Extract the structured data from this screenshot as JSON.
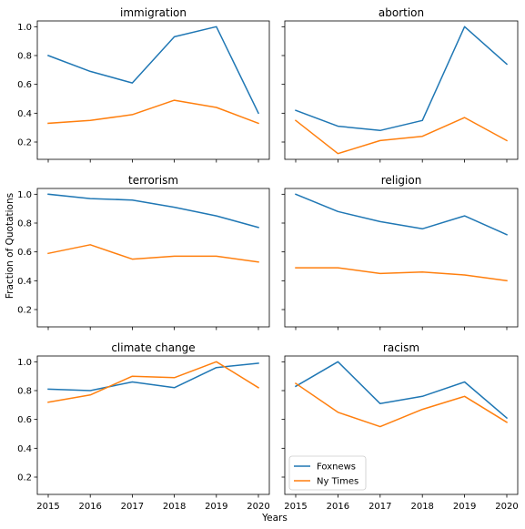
{
  "figure": {
    "xlabel": "Years",
    "ylabel": "Fraction of Quotations",
    "legend": {
      "placement": "lower-left",
      "subplot": 5,
      "entries": [
        "Foxnews",
        "Ny Times"
      ]
    }
  },
  "chart_data": [
    {
      "type": "line",
      "title": "immigration",
      "x": [
        2015,
        2016,
        2017,
        2018,
        2019,
        2020
      ],
      "ylim": [
        0.08,
        1.04
      ],
      "grid": false,
      "series": [
        {
          "name": "Foxnews",
          "color": "#1f77b4",
          "values": [
            0.8,
            0.69,
            0.61,
            0.93,
            1.0,
            0.4
          ]
        },
        {
          "name": "Ny Times",
          "color": "#ff7f0e",
          "values": [
            0.33,
            0.35,
            0.39,
            0.49,
            0.44,
            0.33
          ]
        }
      ]
    },
    {
      "type": "line",
      "title": "abortion",
      "x": [
        2015,
        2016,
        2017,
        2018,
        2019,
        2020
      ],
      "ylim": [
        0.08,
        1.04
      ],
      "grid": false,
      "series": [
        {
          "name": "Foxnews",
          "color": "#1f77b4",
          "values": [
            0.42,
            0.31,
            0.28,
            0.35,
            1.0,
            0.74
          ]
        },
        {
          "name": "Ny Times",
          "color": "#ff7f0e",
          "values": [
            0.35,
            0.12,
            0.21,
            0.24,
            0.37,
            0.21
          ]
        }
      ]
    },
    {
      "type": "line",
      "title": "terrorism",
      "x": [
        2015,
        2016,
        2017,
        2018,
        2019,
        2020
      ],
      "ylim": [
        0.08,
        1.04
      ],
      "grid": false,
      "series": [
        {
          "name": "Foxnews",
          "color": "#1f77b4",
          "values": [
            1.0,
            0.97,
            0.96,
            0.91,
            0.85,
            0.77
          ]
        },
        {
          "name": "Ny Times",
          "color": "#ff7f0e",
          "values": [
            0.59,
            0.65,
            0.55,
            0.57,
            0.57,
            0.53
          ]
        }
      ]
    },
    {
      "type": "line",
      "title": "religion",
      "x": [
        2015,
        2016,
        2017,
        2018,
        2019,
        2020
      ],
      "ylim": [
        0.08,
        1.04
      ],
      "grid": false,
      "series": [
        {
          "name": "Foxnews",
          "color": "#1f77b4",
          "values": [
            1.0,
            0.88,
            0.81,
            0.76,
            0.85,
            0.72
          ]
        },
        {
          "name": "Ny Times",
          "color": "#ff7f0e",
          "values": [
            0.49,
            0.49,
            0.45,
            0.46,
            0.44,
            0.4
          ]
        }
      ]
    },
    {
      "type": "line",
      "title": "climate change",
      "x": [
        2015,
        2016,
        2017,
        2018,
        2019,
        2020
      ],
      "ylim": [
        0.08,
        1.04
      ],
      "grid": false,
      "series": [
        {
          "name": "Foxnews",
          "color": "#1f77b4",
          "values": [
            0.81,
            0.8,
            0.86,
            0.82,
            0.96,
            0.99
          ]
        },
        {
          "name": "Ny Times",
          "color": "#ff7f0e",
          "values": [
            0.72,
            0.77,
            0.9,
            0.89,
            1.0,
            0.82
          ]
        }
      ]
    },
    {
      "type": "line",
      "title": "racism",
      "x": [
        2015,
        2016,
        2017,
        2018,
        2019,
        2020
      ],
      "ylim": [
        0.08,
        1.04
      ],
      "grid": false,
      "series": [
        {
          "name": "Foxnews",
          "color": "#1f77b4",
          "values": [
            0.83,
            1.0,
            0.71,
            0.76,
            0.86,
            0.61
          ]
        },
        {
          "name": "Ny Times",
          "color": "#ff7f0e",
          "values": [
            0.85,
            0.65,
            0.55,
            0.67,
            0.76,
            0.58
          ]
        }
      ]
    }
  ],
  "yticks": [
    "0.2",
    "0.4",
    "0.6",
    "0.8",
    "1.0"
  ],
  "ytick_values": [
    0.2,
    0.4,
    0.6,
    0.8,
    1.0
  ],
  "xticks": [
    "2015",
    "2016",
    "2017",
    "2018",
    "2019",
    "2020"
  ]
}
